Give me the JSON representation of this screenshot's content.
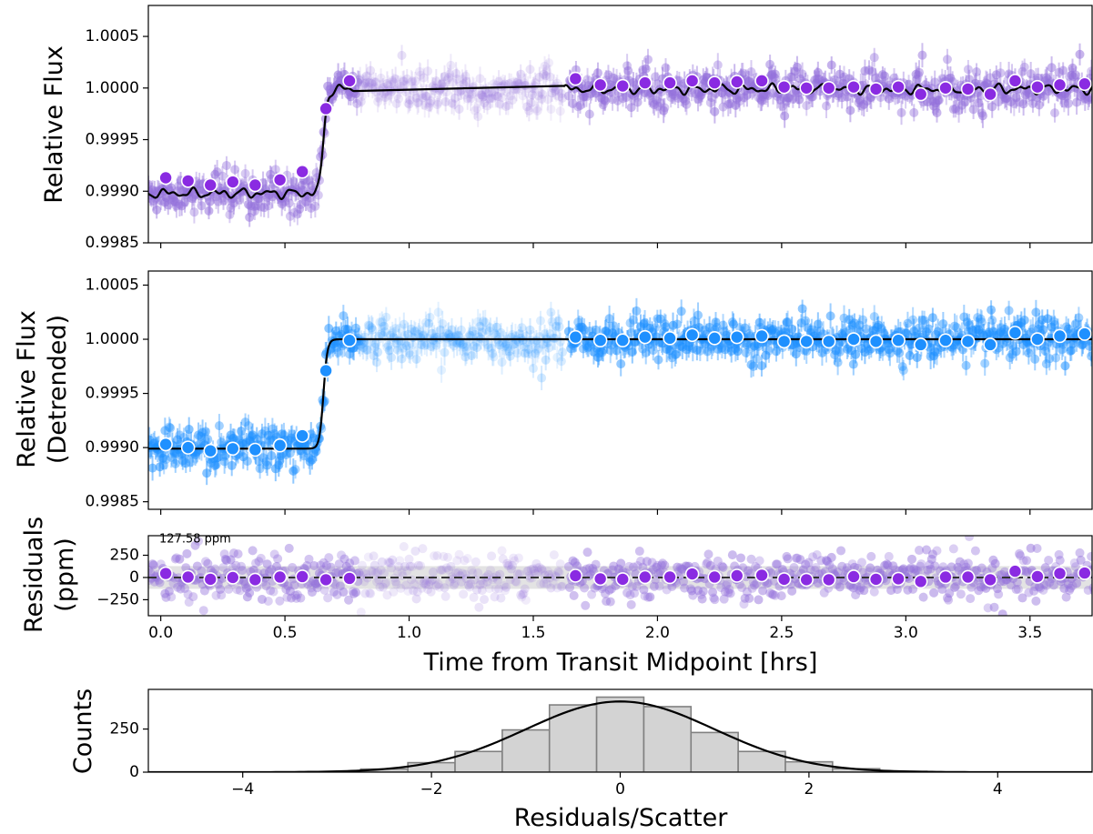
{
  "colors": {
    "purple_points": "#9370DB",
    "purple_bins": "#8A2BE2",
    "blue_points": "#1E90FF",
    "hist_fill": "#d3d3d3",
    "hist_edge": "#808080",
    "model": "#000000"
  },
  "chart_data": [
    {
      "type": "scatter",
      "id": "raw",
      "ylabel": "Relative Flux",
      "xlim": [
        -0.05,
        3.75
      ],
      "ylim": [
        0.9985,
        1.0008
      ],
      "yticks": [
        0.9985,
        0.999,
        0.9995,
        1.0,
        1.0005
      ],
      "ytick_labels": [
        "0.9985",
        "0.9990",
        "0.9995",
        "1.0000",
        "1.0005"
      ],
      "xticks": [
        0,
        0.5,
        1.0,
        1.5,
        2.0,
        2.5,
        3.0,
        3.5
      ],
      "show_xtick_labels": false,
      "series": [
        {
          "role": "binned",
          "x": [
            0.02,
            0.11,
            0.2,
            0.29,
            0.38,
            0.48,
            0.57,
            0.665,
            0.76,
            1.67,
            1.77,
            1.86,
            1.95,
            2.05,
            2.14,
            2.23,
            2.32,
            2.42,
            2.51,
            2.6,
            2.69,
            2.79,
            2.88,
            2.97,
            3.06,
            3.16,
            3.25,
            3.34,
            3.44,
            3.53,
            3.62,
            3.72
          ],
          "y": [
            0.99913,
            0.9991,
            0.99906,
            0.99909,
            0.99906,
            0.99911,
            0.99919,
            0.9998,
            1.00007,
            1.00009,
            1.00003,
            1.00002,
            1.00005,
            1.00005,
            1.00007,
            1.00005,
            1.00006,
            1.00007,
            1.00001,
            1.0,
            1.0,
            1.00001,
            0.99999,
            1.00001,
            0.99994,
            1.0,
            0.99999,
            0.99994,
            1.00007,
            1.00001,
            1.00003,
            1.00004
          ]
        }
      ]
    },
    {
      "type": "scatter",
      "id": "detrended",
      "ylabel": "Relative Flux (Detrended)",
      "ylabel_lines": [
        "Relative Flux",
        "(Detrended)"
      ],
      "xlim": [
        -0.05,
        3.75
      ],
      "ylim": [
        0.99843,
        1.00063
      ],
      "yticks": [
        0.9985,
        0.999,
        0.9995,
        1.0,
        1.0005
      ],
      "ytick_labels": [
        "0.9985",
        "0.9990",
        "0.9995",
        "1.0000",
        "1.0005"
      ],
      "xticks": [
        0,
        0.5,
        1.0,
        1.5,
        2.0,
        2.5,
        3.0,
        3.5
      ],
      "show_xtick_labels": false,
      "series": [
        {
          "role": "binned",
          "x": [
            0.02,
            0.11,
            0.2,
            0.29,
            0.38,
            0.48,
            0.57,
            0.665,
            0.76,
            1.67,
            1.77,
            1.86,
            1.95,
            2.05,
            2.14,
            2.23,
            2.32,
            2.42,
            2.51,
            2.6,
            2.69,
            2.79,
            2.88,
            2.97,
            3.06,
            3.16,
            3.25,
            3.34,
            3.44,
            3.53,
            3.62,
            3.72
          ],
          "y": [
            0.99903,
            0.999,
            0.99897,
            0.99899,
            0.99898,
            0.99902,
            0.99911,
            0.99971,
            0.99999,
            1.00002,
            0.99999,
            0.99999,
            1.00002,
            1.00001,
            1.00004,
            1.00001,
            1.00002,
            1.00003,
            0.99998,
            0.99998,
            0.99998,
            1.0,
            0.99998,
            0.99999,
            0.99995,
            0.99999,
            0.99998,
            0.99995,
            1.00006,
            1.0,
            1.00003,
            1.00005
          ]
        }
      ]
    },
    {
      "type": "scatter",
      "id": "residuals",
      "ylabel": "Residuals (ppm)",
      "ylabel_lines": [
        "Residuals",
        "(ppm)"
      ],
      "xlabel": "Time from Transit Midpoint [hrs]",
      "annotation": "127.58 ppm",
      "xlim": [
        -0.05,
        3.75
      ],
      "ylim": [
        -430,
        470
      ],
      "yticks": [
        -250,
        0,
        250
      ],
      "ytick_labels": [
        "−250",
        "0",
        "250"
      ],
      "xticks": [
        0,
        0.5,
        1.0,
        1.5,
        2.0,
        2.5,
        3.0,
        3.5
      ],
      "xtick_labels": [
        "0.0",
        "0.5",
        "1.0",
        "1.5",
        "2.0",
        "2.5",
        "3.0",
        "3.5"
      ],
      "band_ppm": 127.58,
      "series": [
        {
          "role": "binned",
          "x": [
            0.02,
            0.11,
            0.2,
            0.29,
            0.38,
            0.48,
            0.57,
            0.665,
            0.76,
            1.67,
            1.77,
            1.86,
            1.95,
            2.05,
            2.14,
            2.23,
            2.32,
            2.42,
            2.51,
            2.6,
            2.69,
            2.79,
            2.88,
            2.97,
            3.06,
            3.16,
            3.25,
            3.34,
            3.44,
            3.53,
            3.62,
            3.72
          ],
          "y": [
            45,
            5,
            -20,
            0,
            -25,
            5,
            10,
            -25,
            -10,
            20,
            -15,
            -20,
            5,
            5,
            40,
            5,
            20,
            25,
            -20,
            -25,
            -25,
            10,
            -20,
            -15,
            -45,
            5,
            5,
            -25,
            70,
            10,
            45,
            50
          ]
        }
      ]
    },
    {
      "type": "bar",
      "id": "histogram",
      "xlabel": "Residuals/Scatter",
      "ylabel": "Counts",
      "xlim": [
        -5,
        5
      ],
      "ylim": [
        0,
        480
      ],
      "xticks": [
        -4,
        -2,
        0,
        2,
        4
      ],
      "xtick_labels": [
        "−4",
        "−2",
        "0",
        "2",
        "4"
      ],
      "yticks": [
        0,
        250
      ],
      "ytick_labels": [
        "0",
        "250"
      ],
      "bin_edges": [
        -3.25,
        -2.75,
        -2.25,
        -1.75,
        -1.25,
        -0.75,
        -0.25,
        0.25,
        0.75,
        1.25,
        1.75,
        2.25,
        2.75,
        3.25
      ],
      "counts": [
        2,
        18,
        55,
        120,
        245,
        390,
        435,
        380,
        230,
        120,
        60,
        20,
        5
      ],
      "gaussian": {
        "mean": 0,
        "sigma": 1.0,
        "peak": 410
      }
    }
  ]
}
